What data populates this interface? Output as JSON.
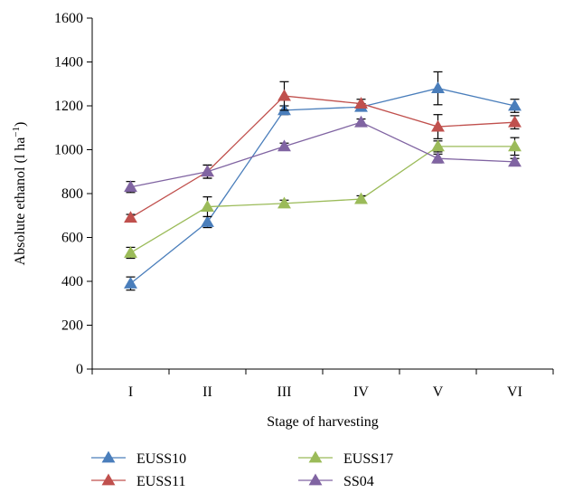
{
  "chart_data": {
    "type": "line",
    "title": "",
    "xlabel": "Stage of harvesting",
    "ylabel": {
      "base": "Absolute ethanol (l ha",
      "sup": "−1",
      "close": ")"
    },
    "categories": [
      "I",
      "II",
      "III",
      "IV",
      "V",
      "VI"
    ],
    "ylim": [
      0,
      1600
    ],
    "yticks": [
      0,
      200,
      400,
      600,
      800,
      1000,
      1200,
      1400,
      1600
    ],
    "grid": false,
    "legend_position": "bottom",
    "series": [
      {
        "name": "EUSS10",
        "color": "#4a7ebb",
        "values": [
          390,
          670,
          1180,
          1195,
          1280,
          1200
        ],
        "errors": [
          30,
          25,
          20,
          15,
          75,
          30
        ]
      },
      {
        "name": "EUSS11",
        "color": "#c0504d",
        "values": [
          690,
          900,
          1245,
          1210,
          1105,
          1125
        ],
        "errors": [
          15,
          30,
          65,
          20,
          55,
          30
        ]
      },
      {
        "name": "EUSS17",
        "color": "#9bbb59",
        "values": [
          530,
          740,
          755,
          775,
          1015,
          1015
        ],
        "errors": [
          25,
          45,
          15,
          15,
          25,
          40
        ]
      },
      {
        "name": "SS04",
        "color": "#8064a2",
        "values": [
          830,
          900,
          1015,
          1125,
          960,
          945
        ],
        "errors": [
          25,
          30,
          15,
          15,
          20,
          15
        ]
      }
    ]
  }
}
